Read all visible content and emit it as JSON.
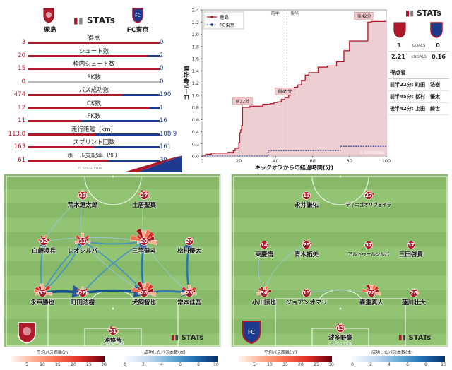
{
  "stats": {
    "home_team": "鹿島",
    "away_team": "FC東京",
    "logo_text": "STATs",
    "rows": [
      {
        "label": "得点",
        "home": "3",
        "away": "0",
        "h": 3,
        "a": 0
      },
      {
        "label": "シュート数",
        "home": "20",
        "away": "2",
        "h": 20,
        "a": 2
      },
      {
        "label": "枠内シュート数",
        "home": "15",
        "away": "0",
        "h": 15,
        "a": 0
      },
      {
        "label": "PK数",
        "home": "0",
        "away": "0",
        "h": 0,
        "a": 0
      },
      {
        "label": "パス成功数",
        "home": "474",
        "away": "190",
        "h": 474,
        "a": 190
      },
      {
        "label": "CK数",
        "home": "12",
        "away": "1",
        "h": 12,
        "a": 1
      },
      {
        "label": "FK数",
        "home": "11",
        "away": "16",
        "h": 11,
        "a": 16
      },
      {
        "label": "走行距離（km）",
        "home": "113.8",
        "away": "108.9",
        "h": 113.8,
        "a": 108.9
      },
      {
        "label": "スプリント回数",
        "home": "163",
        "away": "161",
        "h": 163,
        "a": 161
      },
      {
        "label": "ボール支配率（%）",
        "home": "61",
        "away": "39",
        "h": 61,
        "a": 39
      }
    ],
    "credit": "© SPORTERIA"
  },
  "summary": {
    "logo_text": "STATs",
    "goals_home": "3",
    "goals_label": "GOALS",
    "goals_away": "0",
    "xg_home": "2.21",
    "xg_label": "xGOALS",
    "xg_away": "0.16",
    "scorers_title": "得点者",
    "scorers": [
      "前半22分: 町田　浩樹",
      "前半45分: 松村　優太",
      "後半42分: 上田　綺世"
    ]
  },
  "chart_data": {
    "type": "line",
    "title": "",
    "xlabel": "キックオフからの経過時間(分)",
    "ylabel": "ゴール期待値",
    "xlim": [
      0,
      100
    ],
    "ylim": [
      0,
      2.4
    ],
    "xticks": [
      "0",
      "20",
      "40",
      "60",
      "80",
      "100"
    ],
    "yticks": [
      "0.0",
      "0.2",
      "0.4",
      "0.6",
      "0.8",
      "1.0",
      "1.2",
      "1.4",
      "1.6",
      "1.8",
      "2.0",
      "2.2",
      "2.4"
    ],
    "halves": [
      "前半",
      "後半"
    ],
    "legend": [
      "鹿島",
      "FC東京"
    ],
    "credit": "© SPORTERIA",
    "series": [
      {
        "name": "鹿島",
        "color": "#b0192a",
        "x": [
          0,
          2,
          5,
          14,
          17,
          18,
          20,
          20.5,
          21,
          21.5,
          22,
          26,
          33,
          37,
          39,
          41,
          43,
          45,
          47,
          48,
          50,
          52,
          54,
          56,
          58,
          63,
          68,
          73,
          77,
          80,
          84,
          88,
          90,
          92,
          95,
          100
        ],
        "y": [
          0,
          0.03,
          0.05,
          0.06,
          0.09,
          0.13,
          0.22,
          0.38,
          0.43,
          0.5,
          0.8,
          0.82,
          0.85,
          0.86,
          0.88,
          0.89,
          0.93,
          0.96,
          1.0,
          1.09,
          1.13,
          1.17,
          1.24,
          1.33,
          1.37,
          1.46,
          1.48,
          1.55,
          1.73,
          1.89,
          1.89,
          1.89,
          2.2,
          2.21,
          2.21,
          2.21
        ]
      },
      {
        "name": "FC東京",
        "color": "#1d3a8f",
        "x": [
          0,
          35,
          36,
          74,
          75,
          100
        ],
        "y": [
          0,
          0,
          0.09,
          0.09,
          0.16,
          0.16
        ]
      }
    ],
    "annotations": [
      {
        "label": "前22分",
        "x": 22,
        "y": 0.8
      },
      {
        "label": "前45分",
        "x": 45,
        "y": 0.96
      },
      {
        "label": "後42分",
        "x": 88,
        "y": 2.2
      }
    ]
  },
  "pitch_home": {
    "players": [
      {
        "num": "33",
        "name": "荒木遼太郎"
      },
      {
        "num": "27",
        "name": "土居聖真"
      },
      {
        "num": "32",
        "name": "白崎凌兵"
      },
      {
        "num": "11",
        "name": "レオシルバ"
      },
      {
        "num": "20",
        "name": "三竿健斗"
      },
      {
        "num": "27",
        "name": "松村優太"
      },
      {
        "num": "37",
        "name": "永戸勝也"
      },
      {
        "num": "28",
        "name": "町田浩樹"
      },
      {
        "num": "28",
        "name": "犬飼智也"
      },
      {
        "num": "23",
        "name": "常本佳吾"
      },
      {
        "num": "31",
        "name": "沖悠哉"
      }
    ],
    "logo_text": "STATs",
    "credit": "© SPORTERIA"
  },
  "pitch_away": {
    "players": [
      {
        "num": "13",
        "name": "永井謙佑"
      },
      {
        "num": "27",
        "name": "ディエゴオリヴェイラ"
      },
      {
        "num": "14",
        "name": "東慶悟"
      },
      {
        "num": "25",
        "name": "青木拓矢"
      },
      {
        "num": "37",
        "name": "アルトゥールシルバ"
      },
      {
        "num": "37",
        "name": "三田啓貴"
      },
      {
        "num": "36",
        "name": "小川諒也"
      },
      {
        "num": "13",
        "name": "ジョアンオマリ"
      },
      {
        "num": "28",
        "name": "森重真人"
      },
      {
        "num": "26",
        "name": "蓮川壮大"
      },
      {
        "num": "13",
        "name": "波多野豪"
      }
    ],
    "logo_text": "STATs",
    "credit": "© SPORTERIA"
  },
  "legends": {
    "distance_title": "平均パス距離(m)",
    "distance_ticks": [
      "5",
      "10",
      "15",
      "20",
      "25",
      "30"
    ],
    "passes_title": "成功したパス本数(本)",
    "passes_ticks": [
      "0",
      "2",
      "4",
      "6",
      "8",
      "10"
    ]
  }
}
